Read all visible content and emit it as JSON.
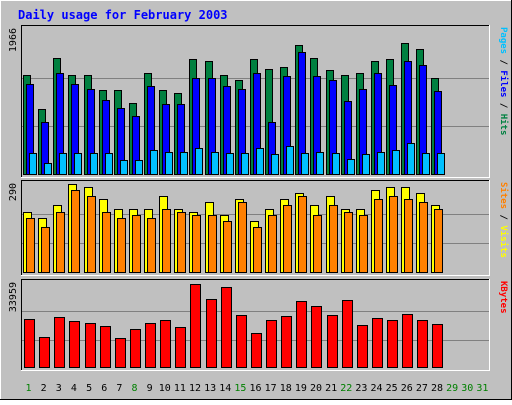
{
  "chart_data": {
    "type": "bar",
    "title": "Daily usage for February 2003",
    "days": [
      "1",
      "2",
      "3",
      "4",
      "5",
      "6",
      "7",
      "8",
      "9",
      "10",
      "11",
      "12",
      "13",
      "14",
      "15",
      "16",
      "17",
      "18",
      "19",
      "20",
      "21",
      "22",
      "23",
      "24",
      "25",
      "26",
      "27",
      "28",
      "29",
      "30",
      "31"
    ],
    "panels": [
      {
        "id": "hits-files-pages",
        "ymax_label": "1966",
        "ymax": 1966,
        "legend": [
          {
            "text": "Pages",
            "color": "#00c0ff"
          },
          {
            "text": " / ",
            "color": "#000000"
          },
          {
            "text": "Files",
            "color": "#0000ff"
          },
          {
            "text": " / ",
            "color": "#000000"
          },
          {
            "text": "Hits",
            "color": "#008040"
          }
        ],
        "series": [
          {
            "name": "Hits",
            "color": "#008040",
            "values": [
              1340,
              890,
              1570,
              1350,
              1340,
              1150,
              1150,
              970,
              1370,
              1140,
              1110,
              1560,
              1540,
              1340,
              1280,
              1560,
              1430,
              1450,
              1750,
              1570,
              1420,
              1340,
              1380,
              1540,
              1560,
              1780,
              1700,
              1310,
              0,
              0,
              0
            ]
          },
          {
            "name": "Files",
            "color": "#0000ff",
            "values": [
              1220,
              710,
              1370,
              1230,
              1160,
              1010,
              900,
              800,
              1200,
              960,
              960,
              1300,
              1300,
              1200,
              1160,
              1380,
              710,
              1330,
              1650,
              1330,
              1280,
              990,
              1160,
              1370,
              1210,
              1540,
              1480,
              1130,
              0,
              0,
              0
            ]
          },
          {
            "name": "Pages",
            "color": "#00c0ff",
            "values": [
              300,
              160,
              300,
              290,
              300,
              300,
              200,
              200,
              330,
              310,
              310,
              360,
              310,
              300,
              290,
              360,
              280,
              390,
              290,
              310,
              300,
              210,
              280,
              310,
              330,
              430,
              300,
              300,
              0,
              0,
              0
            ]
          }
        ]
      },
      {
        "id": "visits-sites",
        "ymax_label": "290",
        "ymax": 290,
        "legend": [
          {
            "text": "Sites",
            "color": "#ff8000"
          },
          {
            "text": " / ",
            "color": "#000000"
          },
          {
            "text": "Visits",
            "color": "#ffff00"
          }
        ],
        "series": [
          {
            "name": "Visits",
            "color": "#ffff00",
            "values": [
              200,
              180,
              220,
              290,
              280,
              240,
              210,
              210,
              210,
              250,
              210,
              200,
              230,
              190,
              240,
              170,
              210,
              240,
              260,
              220,
              250,
              210,
              210,
              270,
              280,
              280,
              260,
              220,
              0,
              0,
              0
            ]
          },
          {
            "name": "Sites",
            "color": "#ff8000",
            "values": [
              180,
              150,
              200,
              270,
              250,
              200,
              180,
              190,
              180,
              210,
              200,
              190,
              190,
              170,
              230,
              150,
              190,
              220,
              250,
              190,
              220,
              200,
              190,
              240,
              250,
              240,
              230,
              210,
              0,
              0,
              0
            ]
          }
        ]
      },
      {
        "id": "kbytes",
        "ymax_label": "33959",
        "ymax": 33959,
        "legend": [
          {
            "text": "KBytes",
            "color": "#ff0000"
          }
        ],
        "series": [
          {
            "name": "KBytes",
            "color": "#ff0000",
            "values": [
              19500,
              12200,
              20400,
              18700,
              17800,
              16700,
              11900,
              15500,
              17800,
              19100,
              16500,
              33400,
              27600,
              32500,
              21000,
              14000,
              19300,
              20600,
              26800,
              24800,
              21100,
              27100,
              17200,
              20000,
              19300,
              21600,
              19300,
              17400,
              0,
              0,
              0
            ]
          }
        ]
      }
    ]
  }
}
